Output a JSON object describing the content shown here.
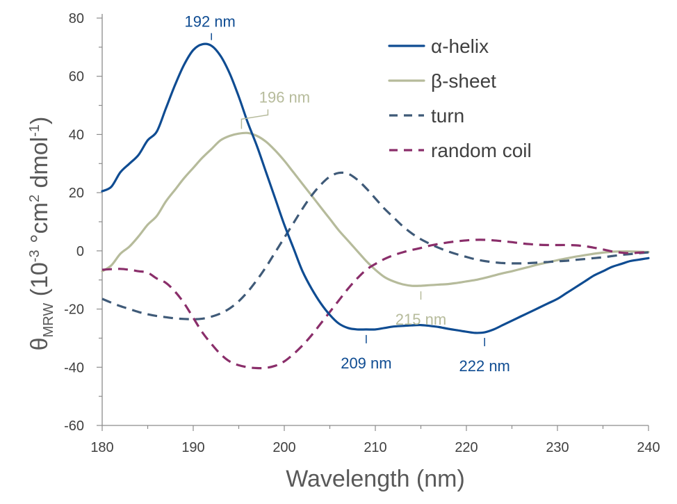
{
  "chart_data": {
    "type": "line",
    "xlabel": "Wavelength (nm)",
    "ylabel": {
      "symbol": "θ",
      "subscript": "MRW",
      "part1": " (10",
      "sup1": "-3",
      "part2": " °cm",
      "sup2": "2",
      "part3": " dmol",
      "sup3": "-1",
      "part4": ")"
    },
    "xlim": [
      180,
      240
    ],
    "ylim": [
      -60,
      80
    ],
    "xticks": [
      "180",
      "190",
      "200",
      "210",
      "220",
      "230",
      "240"
    ],
    "yticks": [
      "-60",
      "-40",
      "-20",
      "0",
      "20",
      "40",
      "60",
      "80"
    ],
    "grid": false,
    "legend_position": "top-right",
    "series": [
      {
        "name": "α-helix",
        "color": "#0F4C92",
        "dash": "solid",
        "x": [
          180,
          181,
          182,
          183,
          184,
          185,
          186,
          187,
          188,
          189,
          190,
          191,
          192,
          193,
          194,
          195,
          196,
          197,
          198,
          199,
          200,
          201,
          202,
          203,
          204,
          205,
          206,
          207,
          208,
          209,
          210,
          211,
          212,
          213,
          214,
          215,
          216,
          217,
          218,
          219,
          220,
          221,
          222,
          223,
          224,
          225,
          226,
          227,
          228,
          229,
          230,
          231,
          232,
          233,
          234,
          235,
          236,
          237,
          238,
          239,
          240
        ],
        "y": [
          20.5,
          22,
          27,
          30,
          33,
          38,
          41,
          49,
          57,
          64,
          69,
          71,
          70.5,
          67,
          61,
          53,
          44,
          36,
          27,
          18,
          9,
          1,
          -7,
          -13,
          -18,
          -22,
          -25,
          -26.5,
          -27,
          -27,
          -27,
          -26.5,
          -26,
          -25.8,
          -25.6,
          -25.5,
          -25.8,
          -26.2,
          -26.8,
          -27.3,
          -27.8,
          -28.2,
          -28,
          -27,
          -25.5,
          -24,
          -22.5,
          -21,
          -19.5,
          -18,
          -16.5,
          -14.5,
          -12.5,
          -10.5,
          -8.5,
          -7,
          -5.5,
          -4.5,
          -3.5,
          -3,
          -2.5
        ]
      },
      {
        "name": "β-sheet",
        "color": "#B6BB9B",
        "dash": "solid",
        "x": [
          180,
          181,
          182,
          183,
          184,
          185,
          186,
          187,
          188,
          189,
          190,
          191,
          192,
          193,
          194,
          195,
          196,
          197,
          198,
          199,
          200,
          201,
          202,
          203,
          204,
          205,
          206,
          207,
          208,
          209,
          210,
          211,
          212,
          213,
          214,
          215,
          216,
          217,
          218,
          219,
          220,
          221,
          222,
          223,
          224,
          225,
          226,
          227,
          228,
          229,
          230,
          231,
          232,
          233,
          234,
          235,
          236,
          237,
          238,
          239,
          240
        ],
        "y": [
          -7,
          -5,
          -1,
          1.5,
          5,
          9,
          12,
          17,
          21,
          25,
          28.5,
          32,
          35,
          38,
          39.5,
          40.3,
          40.5,
          39.5,
          37.5,
          34.5,
          31,
          27,
          23,
          19,
          15,
          11,
          7,
          3.5,
          0,
          -3.5,
          -6.5,
          -9,
          -10.5,
          -11.5,
          -12,
          -12,
          -11.8,
          -11.6,
          -11.4,
          -11,
          -10.5,
          -10,
          -9.3,
          -8.5,
          -7.7,
          -7,
          -6.2,
          -5.4,
          -4.6,
          -3.9,
          -3.2,
          -2.6,
          -2,
          -1.5,
          -1,
          -0.6,
          -0.3,
          -0.2,
          -0.2,
          -0.3,
          -0.4
        ]
      },
      {
        "name": "turn",
        "color": "#3F5A78",
        "dash": "dashed",
        "x": [
          180,
          181,
          182,
          183,
          184,
          185,
          186,
          187,
          188,
          189,
          190,
          191,
          192,
          193,
          194,
          195,
          196,
          197,
          198,
          199,
          200,
          201,
          202,
          203,
          204,
          205,
          206,
          207,
          208,
          209,
          210,
          211,
          212,
          213,
          214,
          215,
          216,
          217,
          218,
          219,
          220,
          221,
          222,
          223,
          224,
          225,
          226,
          227,
          228,
          229,
          230,
          231,
          232,
          233,
          234,
          235,
          236,
          237,
          238,
          239,
          240
        ],
        "y": [
          -16.5,
          -17.8,
          -19,
          -20,
          -21,
          -21.8,
          -22.4,
          -22.8,
          -23.2,
          -23.4,
          -23.5,
          -23.3,
          -22.6,
          -21.5,
          -19.8,
          -17.3,
          -14,
          -10,
          -5.5,
          -0.5,
          4.5,
          9.5,
          14.5,
          19,
          22.7,
          25.5,
          26.8,
          26.5,
          24.5,
          21.5,
          18,
          14.5,
          11.5,
          8.5,
          6,
          4,
          2.4,
          1,
          -0.2,
          -1.2,
          -2.1,
          -2.9,
          -3.5,
          -3.9,
          -4.2,
          -4.3,
          -4.3,
          -4.2,
          -4,
          -3.8,
          -3.6,
          -3.4,
          -3.1,
          -2.8,
          -2.5,
          -2.2,
          -1.8,
          -1.4,
          -1.1,
          -0.8,
          -0.5
        ]
      },
      {
        "name": "random coil",
        "color": "#8A2E6A",
        "dash": "dashed",
        "x": [
          180,
          181,
          182,
          183,
          184,
          185,
          186,
          187,
          188,
          189,
          190,
          191,
          192,
          193,
          194,
          195,
          196,
          197,
          198,
          199,
          200,
          201,
          202,
          203,
          204,
          205,
          206,
          207,
          208,
          209,
          210,
          211,
          212,
          213,
          214,
          215,
          216,
          217,
          218,
          219,
          220,
          221,
          222,
          223,
          224,
          225,
          226,
          227,
          228,
          229,
          230,
          231,
          232,
          233,
          234,
          235,
          236,
          237,
          238,
          239,
          240
        ],
        "y": [
          -6.5,
          -6.3,
          -6.2,
          -6.5,
          -7,
          -7.5,
          -9.5,
          -11,
          -14,
          -18,
          -23,
          -28,
          -32,
          -35.5,
          -38,
          -39.3,
          -40,
          -40.3,
          -40.2,
          -39.5,
          -38,
          -35.5,
          -32.5,
          -29,
          -25,
          -21,
          -17,
          -13,
          -9.5,
          -6.5,
          -4.5,
          -2.8,
          -1.5,
          -0.5,
          0.3,
          1,
          1.8,
          2.4,
          2.9,
          3.3,
          3.6,
          3.8,
          3.8,
          3.6,
          3.3,
          3,
          2.6,
          2.3,
          2.1,
          2,
          2,
          2,
          1.9,
          1.6,
          1.1,
          0.5,
          -0.2,
          -0.6,
          -0.8,
          -0.6,
          -0.4
        ]
      }
    ],
    "annotations": [
      {
        "text": "192 nm",
        "x": 192,
        "y": 71,
        "series": "α-helix",
        "side": "above"
      },
      {
        "text": "196 nm",
        "x": 195.3,
        "y": 40.5,
        "series": "β-sheet",
        "side": "above-bracket"
      },
      {
        "text": "209 nm",
        "x": 209,
        "y": -27,
        "series": "α-helix",
        "side": "below"
      },
      {
        "text": "215 nm",
        "x": 215,
        "y": -12,
        "series": "β-sheet",
        "side": "below"
      },
      {
        "text": "222 nm",
        "x": 222,
        "y": -28,
        "series": "α-helix",
        "side": "below"
      }
    ]
  }
}
